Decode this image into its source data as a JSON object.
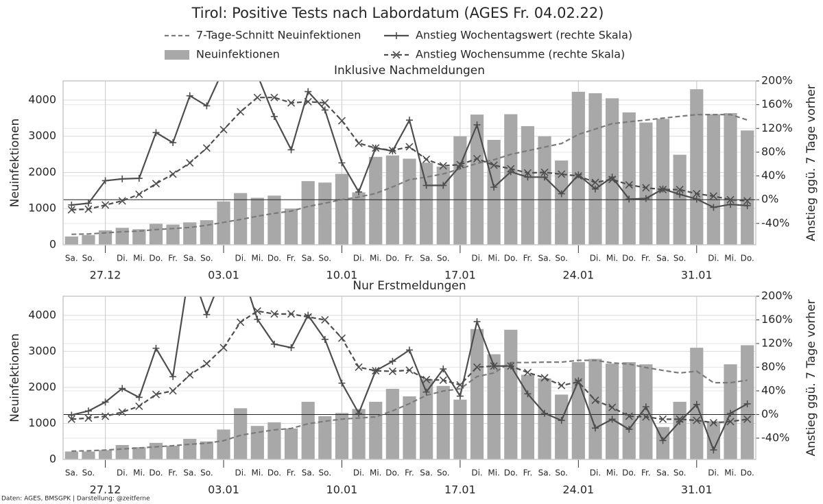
{
  "title": "Tirol: Positive Tests nach Labordatum (AGES Fr. 04.02.22)",
  "footer": "Daten: AGES, BMSGPK | Darstellung: @zeitferne",
  "chart_data": [
    {
      "type": "bar",
      "title": "Inklusive Nachmeldungen",
      "ylabel": "Neuinfektionen",
      "y2label": "Anstieg ggü. 7 Tage vorher",
      "categories": [
        "Sa.",
        "So.",
        null,
        "Di.",
        "Mi.",
        "Do.",
        "Fr.",
        "Sa.",
        "So.",
        null,
        "Di.",
        "Mi.",
        "Do.",
        "Fr.",
        "Sa.",
        "So.",
        null,
        "Di.",
        "Mi.",
        "Do.",
        "Fr.",
        "Sa.",
        "So.",
        null,
        "Di.",
        "Mi.",
        "Do.",
        "Fr.",
        "Sa.",
        "So.",
        null,
        "Di.",
        "Mi.",
        "Do.",
        "Fr.",
        "Sa.",
        "So.",
        null,
        "Di.",
        "Mi.",
        "Do."
      ],
      "date_labels": [
        "27.12",
        "03.01",
        "10.01",
        "17.01",
        "24.01",
        "31.01"
      ],
      "ylim": [
        0,
        4530
      ],
      "yticks": [
        0,
        1000,
        2000,
        3000,
        4000
      ],
      "y2lim": [
        -76,
        200
      ],
      "y2ticks": [
        {
          "value": -40,
          "label": "-40%"
        },
        {
          "value": 0,
          "label": "0%"
        },
        {
          "value": 40,
          "label": "40%"
        },
        {
          "value": 80,
          "label": "80%"
        },
        {
          "value": 120,
          "label": "120%"
        },
        {
          "value": 160,
          "label": "160%"
        },
        {
          "value": 200,
          "label": "200%"
        }
      ],
      "y2_reference": 0,
      "grid": true,
      "series": [
        {
          "name": "7-Tage-Schnitt Neuinfektionen",
          "type": "line",
          "dashed": true,
          "color": "#7a7a7a",
          "values": [
            290,
            300,
            330,
            360,
            380,
            420,
            450,
            480,
            540,
            620,
            700,
            790,
            870,
            930,
            1060,
            1150,
            1250,
            1320,
            1420,
            1600,
            1800,
            1870,
            1960,
            2100,
            2250,
            2350,
            2500,
            2600,
            2700,
            2800,
            3050,
            3200,
            3350,
            3400,
            3450,
            3500,
            3550,
            3600,
            3600,
            3600,
            3450
          ]
        },
        {
          "name": "Neuinfektionen",
          "type": "bar",
          "color": "#a8a8a8",
          "values": [
            230,
            270,
            400,
            470,
            430,
            580,
            560,
            620,
            680,
            1200,
            1430,
            1300,
            1360,
            1000,
            1760,
            1720,
            1960,
            1450,
            2430,
            2470,
            2380,
            2270,
            2160,
            3000,
            3600,
            2900,
            3610,
            3280,
            3000,
            2330,
            4230,
            4190,
            4050,
            3660,
            3380,
            3480,
            2490,
            4300,
            3610,
            3640,
            3160
          ]
        },
        {
          "name": "Anstieg Wochentagswert (rechte Skala)",
          "type": "line",
          "axis": "y2",
          "marker": "+",
          "color": "#4d4d4d",
          "values": [
            -9,
            -6,
            32,
            35,
            36,
            113,
            96,
            175,
            158,
            220,
            280,
            210,
            140,
            84,
            182,
            151,
            62,
            13,
            87,
            82,
            134,
            24,
            24,
            57,
            126,
            21,
            47,
            38,
            38,
            10,
            42,
            18,
            38,
            1,
            2,
            18,
            9,
            1,
            -13,
            -8,
            -10
          ]
        },
        {
          "name": "Anstieg Wochensumme (rechte Skala)",
          "type": "line",
          "axis": "y2",
          "marker": "x",
          "dashed": true,
          "color": "#4d4d4d",
          "values": [
            -17,
            -16,
            -9,
            -2,
            9,
            27,
            43,
            62,
            87,
            118,
            148,
            172,
            172,
            163,
            165,
            163,
            133,
            95,
            87,
            83,
            89,
            68,
            57,
            59,
            69,
            58,
            52,
            45,
            46,
            43,
            40,
            29,
            34,
            25,
            20,
            17,
            17,
            10,
            6,
            0,
            -2
          ]
        }
      ]
    },
    {
      "type": "bar",
      "title": "Nur Erstmeldungen",
      "ylabel": "Neuinfektionen",
      "y2label": "Anstieg ggü. 7 Tage vorher",
      "categories": [
        "Sa.",
        "So.",
        null,
        "Di.",
        "Mi.",
        "Do.",
        "Fr.",
        "Sa.",
        "So.",
        null,
        "Di.",
        "Mi.",
        "Do.",
        "Fr.",
        "Sa.",
        "So.",
        null,
        "Di.",
        "Mi.",
        "Do.",
        "Fr.",
        "Sa.",
        "So.",
        null,
        "Di.",
        "Mi.",
        "Do.",
        "Fr.",
        "Sa.",
        "So.",
        null,
        "Di.",
        "Mi.",
        "Do.",
        "Fr.",
        "Sa.",
        "So.",
        null,
        "Di.",
        "Mi.",
        "Do."
      ],
      "date_labels": [
        "27.12",
        "03.01",
        "10.01",
        "17.01",
        "24.01",
        "31.01"
      ],
      "ylim": [
        0,
        4530
      ],
      "yticks": [
        0,
        1000,
        2000,
        3000,
        4000
      ],
      "y2lim": [
        -76,
        200
      ],
      "y2ticks": [
        {
          "value": -40,
          "label": "-40%"
        },
        {
          "value": 0,
          "label": "0%"
        },
        {
          "value": 40,
          "label": "40%"
        },
        {
          "value": 80,
          "label": "80%"
        },
        {
          "value": 120,
          "label": "120%"
        },
        {
          "value": 160,
          "label": "160%"
        },
        {
          "value": 200,
          "label": "200%"
        }
      ],
      "y2_reference": 0,
      "grid": true,
      "series": [
        {
          "name": "7-Tage-Schnitt Neuinfektionen",
          "type": "line",
          "dashed": true,
          "color": "#7a7a7a",
          "values": [
            230,
            240,
            260,
            290,
            320,
            350,
            380,
            420,
            450,
            520,
            670,
            750,
            820,
            860,
            990,
            1060,
            1120,
            1150,
            1180,
            1350,
            1550,
            1780,
            1900,
            1960,
            2300,
            2400,
            2690,
            2690,
            2700,
            2700,
            2750,
            2750,
            2680,
            2650,
            2550,
            2470,
            2400,
            2450,
            2130,
            2130,
            2200
          ]
        },
        {
          "name": "Neuinfektionen",
          "type": "bar",
          "color": "#a8a8a8",
          "values": [
            220,
            220,
            260,
            400,
            340,
            460,
            380,
            570,
            500,
            830,
            1420,
            930,
            1030,
            860,
            1600,
            1200,
            1290,
            1400,
            1600,
            1960,
            1750,
            2230,
            2040,
            1660,
            3620,
            2920,
            3600,
            2350,
            2250,
            1800,
            2700,
            2790,
            2660,
            2700,
            2640,
            900,
            1600,
            3100,
            1060,
            2640,
            3170
          ]
        },
        {
          "name": "Anstieg Wochentagswert (rechte Skala)",
          "type": "line",
          "axis": "y2",
          "marker": "+",
          "color": "#4d4d4d",
          "values": [
            -1,
            6,
            21,
            44,
            29,
            112,
            64,
            250,
            169,
            240,
            250,
            161,
            119,
            113,
            168,
            127,
            53,
            2,
            74,
            90,
            109,
            38,
            77,
            31,
            157,
            82,
            82,
            35,
            2,
            -10,
            57,
            -23,
            -8,
            -25,
            13,
            -44,
            -12,
            17,
            -60,
            2,
            18
          ]
        },
        {
          "name": "Anstieg Wochensumme (rechte Skala)",
          "type": "line",
          "axis": "y2",
          "marker": "x",
          "dashed": true,
          "color": "#4d4d4d",
          "values": [
            -8,
            -6,
            -3,
            4,
            14,
            34,
            40,
            67,
            86,
            113,
            156,
            175,
            170,
            170,
            165,
            160,
            129,
            80,
            74,
            73,
            75,
            59,
            58,
            50,
            80,
            82,
            82,
            71,
            62,
            49,
            55,
            24,
            12,
            -3,
            -4,
            -8,
            -8,
            -10,
            -14,
            -12,
            -8
          ]
        }
      ]
    }
  ]
}
